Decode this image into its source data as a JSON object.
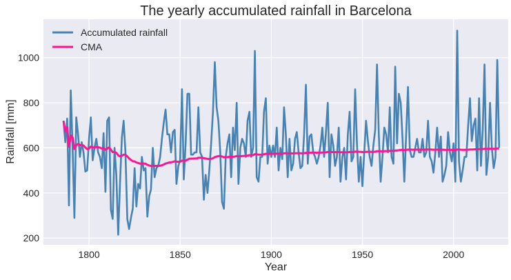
{
  "chart_data": {
    "type": "line",
    "title": "The yearly accumulated rainfall in Barcelona",
    "xlabel": "Year",
    "ylabel": "Rainfall [mm]",
    "xlim": [
      1775,
      2030
    ],
    "ylim": [
      170,
      1170
    ],
    "xticks": [
      1800,
      1850,
      1900,
      1950,
      2000
    ],
    "yticks": [
      200,
      400,
      600,
      800,
      1000
    ],
    "grid": true,
    "legend_position": "top-left",
    "x_start": 1786,
    "colors": {
      "background": "#eaeaf2",
      "grid": "#ffffff",
      "rainfall": "#4682b4",
      "cma": "#ff1493"
    },
    "series": [
      {
        "name": "Accumulated rainfall",
        "values": [
          720,
          625,
          730,
          345,
          855,
          600,
          290,
          735,
          660,
          560,
          625,
          580,
          495,
          500,
          640,
          735,
          545,
          600,
          640,
          580,
          560,
          510,
          665,
          405,
          720,
          735,
          325,
          285,
          600,
          480,
          215,
          440,
          645,
          720,
          580,
          285,
          240,
          290,
          330,
          510,
          340,
          440,
          420,
          560,
          500,
          510,
          295,
          385,
          415,
          600,
          470,
          510,
          520,
          560,
          640,
          710,
          770,
          660,
          660,
          580,
          670,
          680,
          440,
          520,
          545,
          860,
          460,
          620,
          840,
          840,
          570,
          570,
          580,
          580,
          780,
          580,
          560,
          370,
          480,
          400,
          500,
          620,
          760,
          980,
          780,
          720,
          580,
          360,
          330,
          560,
          620,
          660,
          470,
          690,
          590,
          800,
          440,
          600,
          640,
          620,
          560,
          720,
          760,
          560,
          600,
          1030,
          470,
          450,
          560,
          560,
          760,
          820,
          530,
          610,
          560,
          610,
          560,
          690,
          500,
          600,
          550,
          780,
          660,
          470,
          640,
          500,
          530,
          640,
          670,
          580,
          510,
          520,
          660,
          880,
          530,
          650,
          660,
          580,
          560,
          530,
          560,
          610,
          690,
          560,
          670,
          800,
          470,
          660,
          610,
          520,
          560,
          690,
          450,
          560,
          600,
          460,
          660,
          760,
          540,
          560,
          860,
          620,
          450,
          560,
          430,
          580,
          720,
          630,
          560,
          520,
          610,
          680,
          970,
          660,
          450,
          560,
          690,
          660,
          580,
          780,
          560,
          530,
          960,
          620,
          840,
          800,
          640,
          450,
          660,
          870,
          590,
          560,
          560,
          600,
          640,
          580,
          580,
          640,
          560,
          580,
          720,
          560,
          540,
          490,
          580,
          690,
          560,
          650,
          450,
          480,
          520,
          670,
          580,
          540,
          620,
          450,
          1120,
          540,
          450,
          500,
          560,
          560,
          700,
          820,
          630,
          700,
          730,
          500,
          820,
          520,
          680,
          970,
          480,
          560,
          800,
          600,
          510,
          560,
          990,
          600
        ]
      },
      {
        "name": "CMA",
        "values": []
      }
    ]
  }
}
